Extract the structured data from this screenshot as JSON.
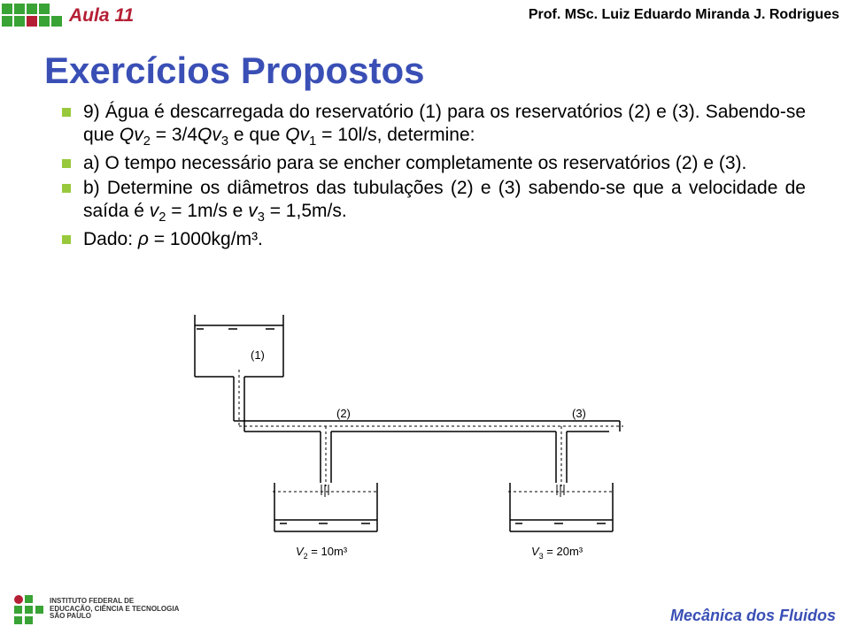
{
  "colors": {
    "green": "#39a335",
    "crimson": "#b51f35",
    "title_blue": "#3a4fb5",
    "bullet_green": "#98c93c",
    "text": "#000000",
    "line": "#000000",
    "dash": "#000000"
  },
  "header": {
    "aula": "Aula 11",
    "prof": "Prof. MSc. Luiz Eduardo Miranda J. Rodrigues"
  },
  "title": "Exercícios Propostos",
  "bullets": [
    {
      "html": "9) Água é descarregada do reservatório (1) para os reservatórios (2) e (3). Sabendo-se que <span class='italic'>Qv</span><span class='sub'>2</span> = 3/4<span class='italic'>Qv</span><span class='sub'>3</span> e que <span class='italic'>Qv</span><span class='sub'>1</span> = 10l/s, determine:"
    },
    {
      "html": "a) O tempo necessário para se encher completamente os reservatórios (2) e (3)."
    },
    {
      "html": "b) Determine os diâmetros das tubulações (2) e (3) sabendo-se que a velocidade de saída é <span class='italic'>v</span><span class='sub'>2</span> = 1m/s e <span class='italic'>v</span><span class='sub'>3</span> = 1,5m/s."
    },
    {
      "html": "Dado: <span class='italic'>ρ</span> = 1000kg/m³."
    }
  ],
  "diagram": {
    "labels": {
      "tank1": "(1)",
      "pipe2": "(2)",
      "pipe3": "(3)",
      "vol2": "V",
      "vol2_sub": "2",
      "vol2_rest": " = 10m³",
      "vol3": "V",
      "vol3_sub": "3",
      "vol3_rest": " = 20m³"
    },
    "style": {
      "stroke_width": 1.5,
      "font_size_label": 13,
      "font_size_vol": 13,
      "dash": "3,3"
    }
  },
  "footer": {
    "institute_lines": [
      "INSTITUTO FEDERAL DE",
      "EDUCAÇÃO, CIÊNCIA E TECNOLOGIA",
      "SÃO PAULO"
    ],
    "course": "Mecânica dos Fluidos"
  }
}
